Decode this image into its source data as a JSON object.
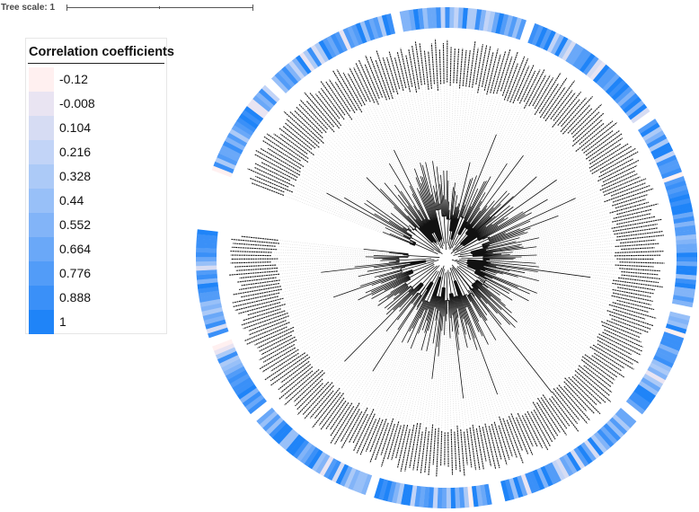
{
  "tree_scale": {
    "label": "Tree scale: 1"
  },
  "legend": {
    "title": "Correlation coefficients",
    "items": [
      {
        "value": "-0.12",
        "color": "#fff0f0"
      },
      {
        "value": "-0.008",
        "color": "#e9e4f2"
      },
      {
        "value": "0.104",
        "color": "#d6dcf3"
      },
      {
        "value": "0.216",
        "color": "#c2d4f7"
      },
      {
        "value": "0.328",
        "color": "#accaf7"
      },
      {
        "value": "0.44",
        "color": "#98c0f8"
      },
      {
        "value": "0.552",
        "color": "#82b4f8"
      },
      {
        "value": "0.664",
        "color": "#6aa8f8"
      },
      {
        "value": "0.776",
        "color": "#529cf8"
      },
      {
        "value": "0.888",
        "color": "#3a90f8"
      },
      {
        "value": "1",
        "color": "#1f84f8"
      }
    ]
  },
  "tree": {
    "leaf_count": 330,
    "gap_count": 14
  }
}
